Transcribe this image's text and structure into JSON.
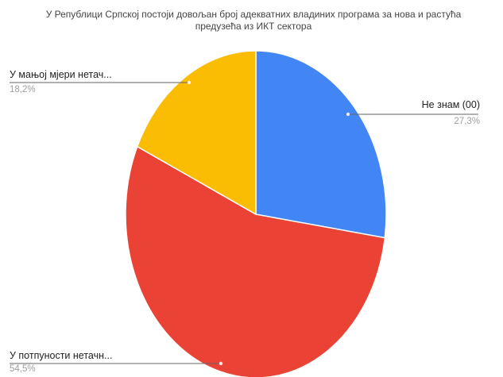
{
  "chart_data": {
    "type": "pie",
    "title_lines": [
      "У Републици Српској постоји довољан број адекватних владиних програма за нова и растућа",
      "предузећа из ИКТ сектора"
    ],
    "slices": [
      {
        "label": "Не знам (00)",
        "value": 27.3,
        "value_label": "27,3%",
        "color": "#4285f4"
      },
      {
        "label": "У потпуности нетачн...",
        "value": 54.5,
        "value_label": "54,5%",
        "color": "#ea4335"
      },
      {
        "label": "У мањој мјери нетач...",
        "value": 18.2,
        "value_label": "18,2%",
        "color": "#fbbc04"
      }
    ],
    "start_angle": "12 o'clock",
    "direction": "clockwise"
  }
}
